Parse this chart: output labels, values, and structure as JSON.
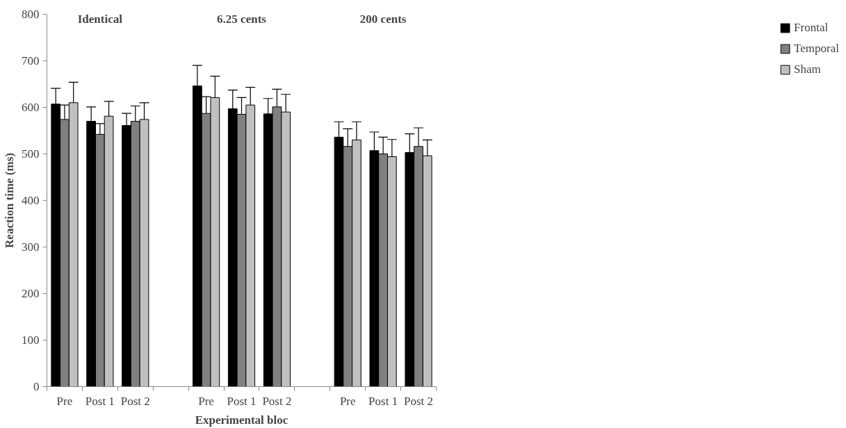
{
  "chart_data": {
    "type": "bar",
    "xlabel": "Experimental bloc",
    "ylabel": "Reaction time (ms)",
    "categories": [
      "Pre",
      "Post 1",
      "Post 2",
      null,
      "Pre",
      "Post 1",
      "Post 2",
      null,
      "Pre",
      "Post 1",
      "Post 2"
    ],
    "series": [
      {
        "name": "Frontal",
        "color": "#000000",
        "values": [
          607,
          570,
          561,
          null,
          646,
          597,
          586,
          null,
          536,
          507,
          503
        ],
        "errors": [
          [
            607,
            641
          ],
          [
            570,
            601
          ],
          [
            561,
            587
          ],
          null,
          [
            646,
            690
          ],
          [
            597,
            637
          ],
          [
            586,
            619
          ],
          null,
          [
            536,
            569
          ],
          [
            507,
            547
          ],
          [
            503,
            543
          ]
        ]
      },
      {
        "name": "Temporal",
        "color": "#808080",
        "values": [
          574,
          542,
          570,
          null,
          587,
          585,
          601,
          null,
          516,
          500,
          516
        ],
        "errors": [
          [
            574,
            605
          ],
          [
            542,
            565
          ],
          [
            570,
            603
          ],
          null,
          [
            587,
            623
          ],
          [
            585,
            621
          ],
          [
            601,
            639
          ],
          null,
          [
            516,
            554
          ],
          [
            500,
            536
          ],
          [
            516,
            556
          ]
        ]
      },
      {
        "name": "Sham",
        "color": "#c0c0c0",
        "values": [
          610,
          581,
          574,
          null,
          621,
          605,
          590,
          null,
          530,
          494,
          496
        ],
        "errors": [
          [
            610,
            654
          ],
          [
            581,
            613
          ],
          [
            574,
            610
          ],
          null,
          [
            621,
            667
          ],
          [
            605,
            643
          ],
          [
            590,
            628
          ],
          null,
          [
            530,
            569
          ],
          [
            494,
            531
          ],
          [
            496,
            530
          ]
        ]
      }
    ],
    "annotations": [
      "Identical",
      "6.25 cents",
      "200 cents"
    ],
    "ylim": [
      0,
      800
    ],
    "yticks": [
      0,
      100,
      200,
      300,
      400,
      500,
      600,
      700,
      800
    ],
    "grid": false,
    "legend": "right"
  }
}
